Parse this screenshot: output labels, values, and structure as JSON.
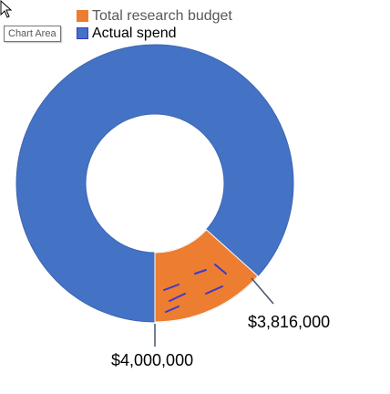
{
  "tooltip": "Chart Area",
  "chart_data": {
    "type": "donut",
    "series": [
      {
        "name": "Total research budget",
        "value": 4000000,
        "label": "$4,000,000",
        "color": "#ED7D31"
      },
      {
        "name": "Actual spend",
        "value": 3816000,
        "label": "$3,816,000",
        "color": "#4472C4"
      }
    ],
    "legend_position": "top-left",
    "colors": {
      "budget": "#ED7D31",
      "spend": "#4472C4",
      "leader_line": "#44546A"
    }
  }
}
